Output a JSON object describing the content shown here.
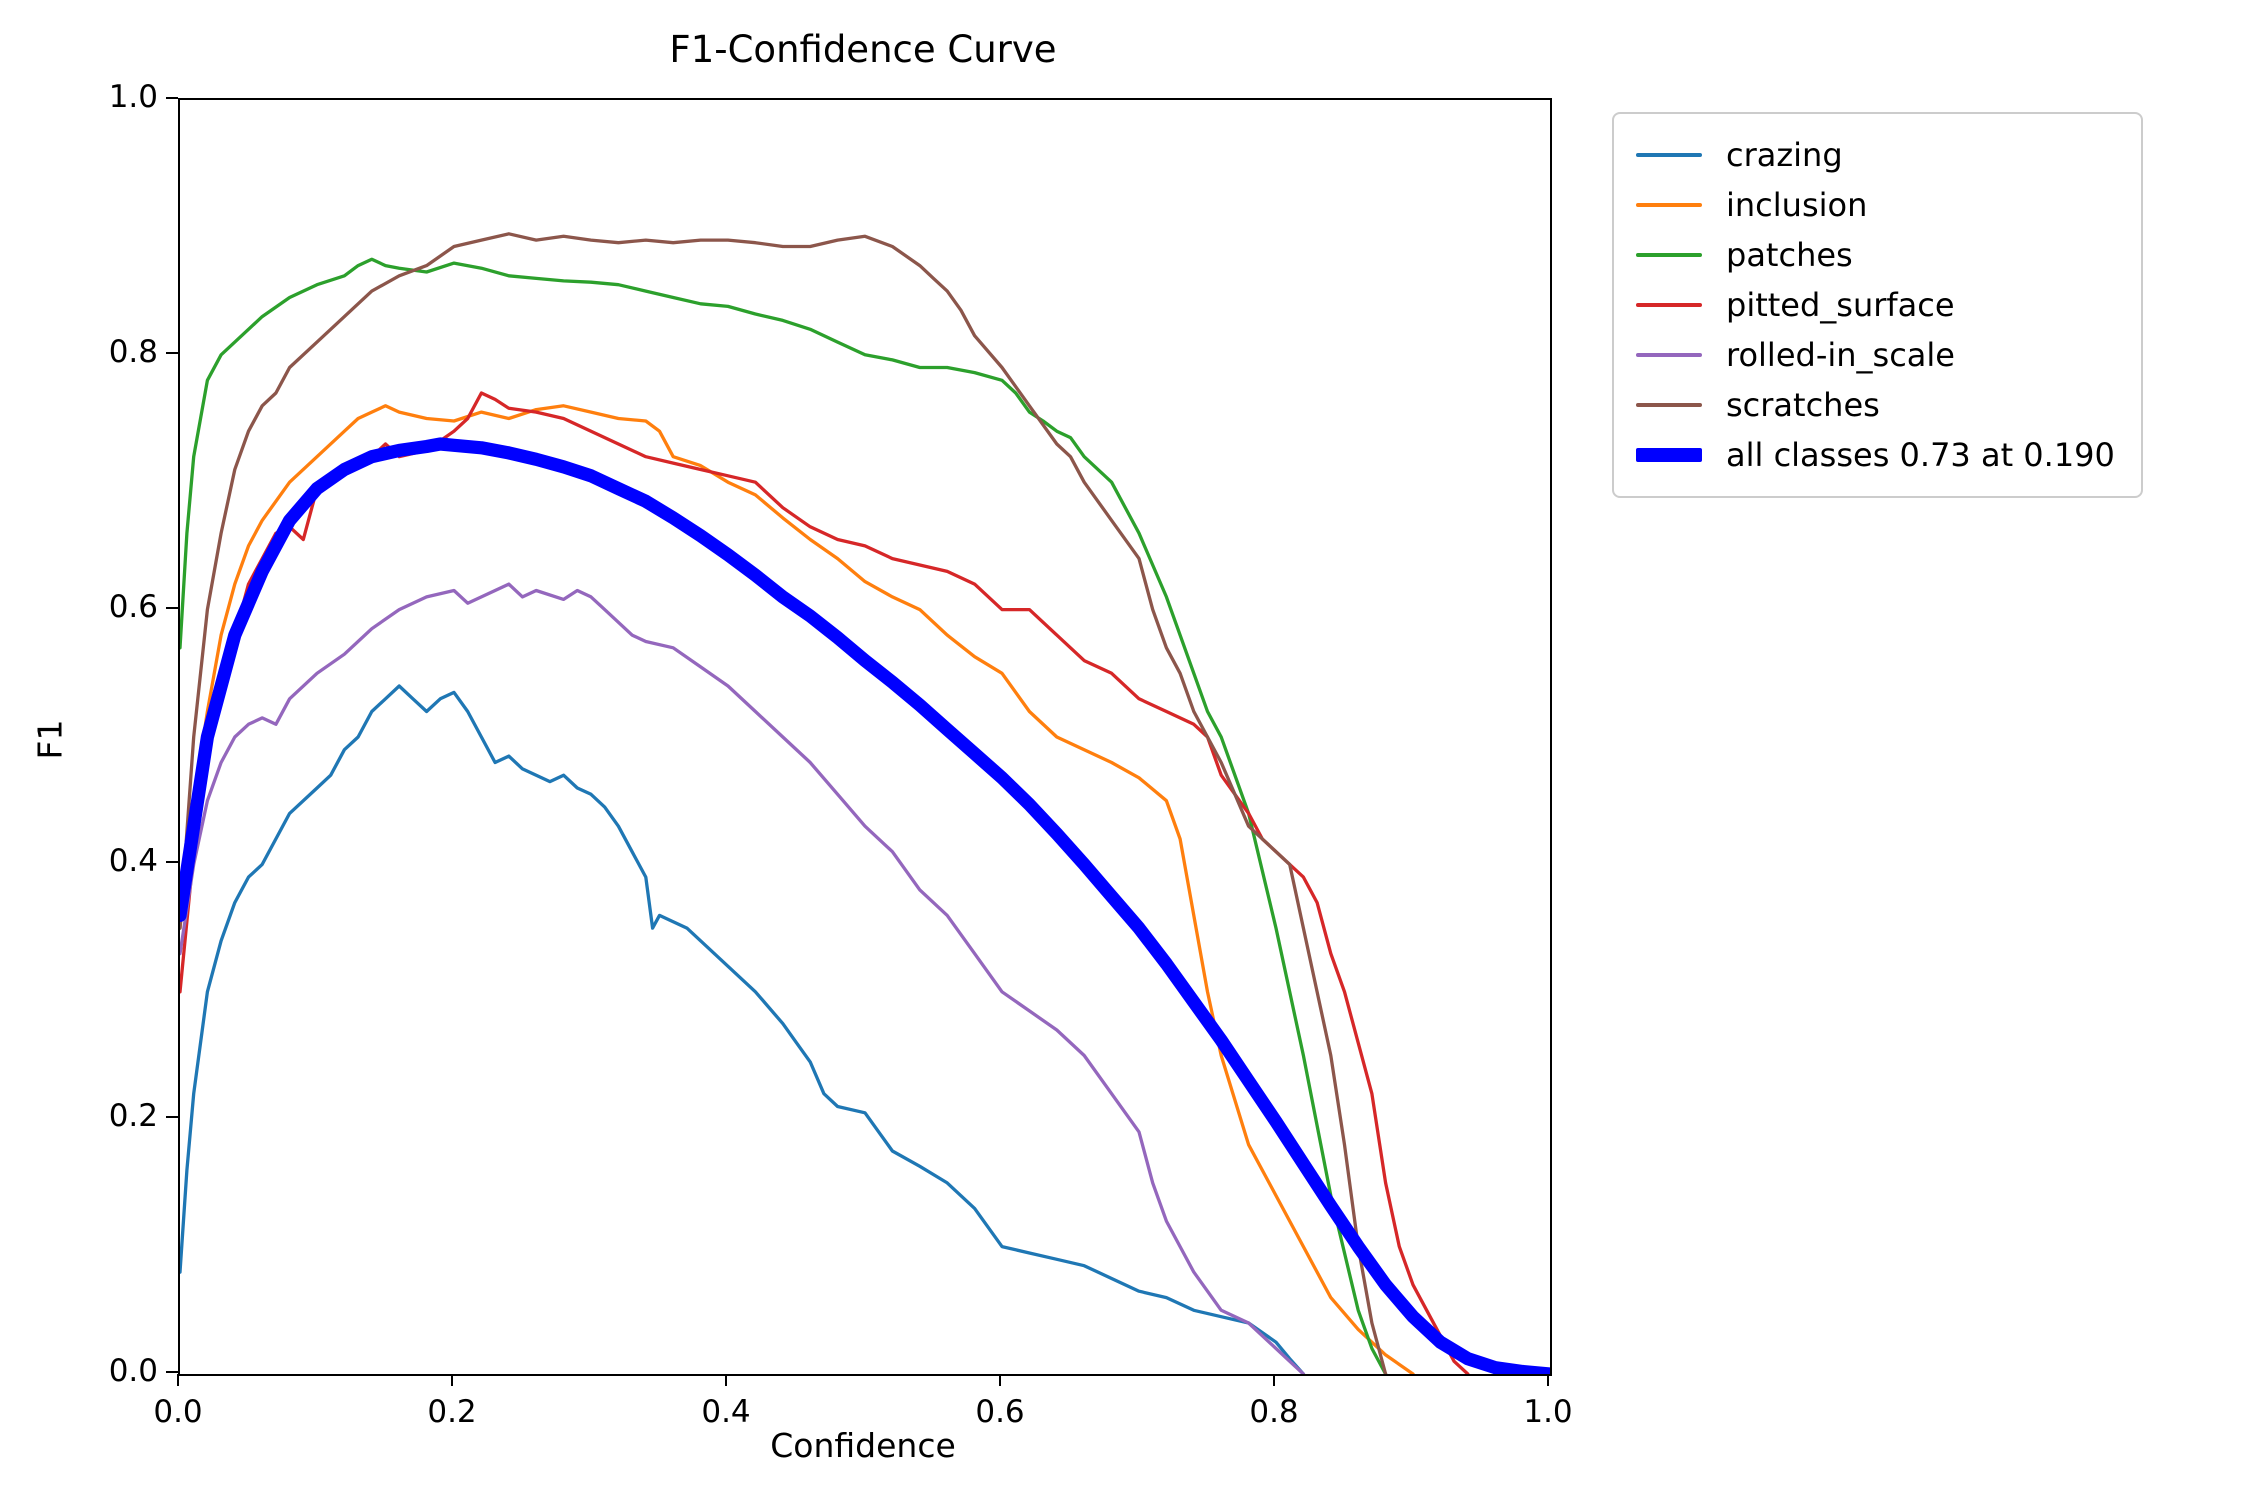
{
  "chart_data": {
    "type": "line",
    "title": "F1-Confidence Curve",
    "xlabel": "Confidence",
    "ylabel": "F1",
    "xlim": [
      0.0,
      1.0
    ],
    "ylim": [
      0.0,
      1.0
    ],
    "x_ticks": [
      0.0,
      0.2,
      0.4,
      0.6,
      0.8,
      1.0
    ],
    "x_tick_labels": [
      "0.0",
      "0.2",
      "0.4",
      "0.6",
      "0.8",
      "1.0"
    ],
    "y_ticks": [
      0.0,
      0.2,
      0.4,
      0.6,
      0.8,
      1.0
    ],
    "y_tick_labels": [
      "0.0",
      "0.2",
      "0.4",
      "0.6",
      "0.8",
      "1.0"
    ],
    "grid": false,
    "legend_position": "outside upper right",
    "series": [
      {
        "name": "crazing",
        "label": "crazing",
        "color": "#1f77b4",
        "lw": 1.5,
        "x": [
          0,
          0.005,
          0.01,
          0.02,
          0.03,
          0.04,
          0.05,
          0.06,
          0.08,
          0.1,
          0.11,
          0.12,
          0.13,
          0.14,
          0.15,
          0.16,
          0.17,
          0.18,
          0.19,
          0.2,
          0.21,
          0.22,
          0.23,
          0.24,
          0.25,
          0.26,
          0.27,
          0.28,
          0.29,
          0.3,
          0.31,
          0.32,
          0.33,
          0.34,
          0.345,
          0.35,
          0.36,
          0.37,
          0.38,
          0.4,
          0.42,
          0.44,
          0.45,
          0.46,
          0.47,
          0.48,
          0.5,
          0.51,
          0.52,
          0.54,
          0.56,
          0.58,
          0.6,
          0.62,
          0.64,
          0.66,
          0.68,
          0.7,
          0.72,
          0.74,
          0.76,
          0.78,
          0.8,
          0.81,
          0.82
        ],
        "y": [
          0.08,
          0.16,
          0.22,
          0.3,
          0.34,
          0.37,
          0.39,
          0.4,
          0.44,
          0.46,
          0.47,
          0.49,
          0.5,
          0.52,
          0.53,
          0.54,
          0.53,
          0.52,
          0.53,
          0.535,
          0.52,
          0.5,
          0.48,
          0.485,
          0.475,
          0.47,
          0.465,
          0.47,
          0.46,
          0.455,
          0.445,
          0.43,
          0.41,
          0.39,
          0.35,
          0.36,
          0.355,
          0.35,
          0.34,
          0.32,
          0.3,
          0.275,
          0.26,
          0.245,
          0.22,
          0.21,
          0.205,
          0.19,
          0.175,
          0.163,
          0.15,
          0.13,
          0.1,
          0.095,
          0.09,
          0.085,
          0.075,
          0.065,
          0.06,
          0.05,
          0.045,
          0.04,
          0.025,
          0.012,
          0.0
        ]
      },
      {
        "name": "inclusion",
        "label": "inclusion",
        "color": "#ff7f0e",
        "lw": 1.5,
        "x": [
          0,
          0.01,
          0.02,
          0.03,
          0.04,
          0.05,
          0.06,
          0.08,
          0.1,
          0.12,
          0.13,
          0.14,
          0.15,
          0.16,
          0.18,
          0.2,
          0.22,
          0.24,
          0.26,
          0.28,
          0.3,
          0.32,
          0.34,
          0.35,
          0.36,
          0.38,
          0.4,
          0.42,
          0.44,
          0.46,
          0.48,
          0.5,
          0.52,
          0.54,
          0.56,
          0.58,
          0.6,
          0.62,
          0.64,
          0.66,
          0.68,
          0.7,
          0.72,
          0.73,
          0.74,
          0.75,
          0.76,
          0.78,
          0.8,
          0.82,
          0.84,
          0.86,
          0.88,
          0.9
        ],
        "y": [
          0.35,
          0.45,
          0.52,
          0.58,
          0.62,
          0.65,
          0.67,
          0.7,
          0.72,
          0.74,
          0.75,
          0.755,
          0.76,
          0.755,
          0.75,
          0.748,
          0.755,
          0.75,
          0.757,
          0.76,
          0.755,
          0.75,
          0.748,
          0.74,
          0.72,
          0.713,
          0.7,
          0.69,
          0.672,
          0.655,
          0.64,
          0.622,
          0.61,
          0.6,
          0.58,
          0.563,
          0.55,
          0.52,
          0.5,
          0.49,
          0.48,
          0.468,
          0.45,
          0.42,
          0.36,
          0.3,
          0.25,
          0.18,
          0.14,
          0.1,
          0.06,
          0.035,
          0.015,
          0.0
        ]
      },
      {
        "name": "patches",
        "label": "patches",
        "color": "#2ca02c",
        "lw": 1.5,
        "x": [
          0,
          0.005,
          0.01,
          0.02,
          0.03,
          0.04,
          0.05,
          0.06,
          0.08,
          0.1,
          0.12,
          0.13,
          0.14,
          0.15,
          0.16,
          0.18,
          0.2,
          0.22,
          0.24,
          0.26,
          0.28,
          0.3,
          0.32,
          0.34,
          0.36,
          0.38,
          0.4,
          0.42,
          0.44,
          0.46,
          0.48,
          0.5,
          0.52,
          0.54,
          0.56,
          0.58,
          0.6,
          0.61,
          0.62,
          0.63,
          0.64,
          0.65,
          0.66,
          0.68,
          0.7,
          0.72,
          0.74,
          0.75,
          0.76,
          0.78,
          0.8,
          0.82,
          0.84,
          0.86,
          0.87,
          0.88
        ],
        "y": [
          0.57,
          0.66,
          0.72,
          0.78,
          0.8,
          0.81,
          0.82,
          0.83,
          0.845,
          0.855,
          0.862,
          0.87,
          0.875,
          0.87,
          0.868,
          0.865,
          0.872,
          0.868,
          0.862,
          0.86,
          0.858,
          0.857,
          0.855,
          0.85,
          0.845,
          0.84,
          0.838,
          0.832,
          0.827,
          0.82,
          0.81,
          0.8,
          0.796,
          0.79,
          0.79,
          0.786,
          0.78,
          0.77,
          0.755,
          0.748,
          0.74,
          0.735,
          0.72,
          0.7,
          0.66,
          0.61,
          0.55,
          0.52,
          0.5,
          0.44,
          0.35,
          0.25,
          0.14,
          0.05,
          0.02,
          0.0
        ]
      },
      {
        "name": "pitted_surface",
        "label": "pitted_surface",
        "color": "#d62728",
        "lw": 1.5,
        "x": [
          0,
          0.01,
          0.02,
          0.03,
          0.04,
          0.05,
          0.06,
          0.07,
          0.08,
          0.09,
          0.1,
          0.12,
          0.14,
          0.15,
          0.16,
          0.18,
          0.2,
          0.21,
          0.22,
          0.23,
          0.24,
          0.26,
          0.28,
          0.3,
          0.32,
          0.34,
          0.36,
          0.38,
          0.4,
          0.42,
          0.44,
          0.46,
          0.48,
          0.5,
          0.52,
          0.54,
          0.56,
          0.58,
          0.6,
          0.62,
          0.64,
          0.66,
          0.68,
          0.7,
          0.72,
          0.74,
          0.75,
          0.76,
          0.78,
          0.79,
          0.8,
          0.81,
          0.82,
          0.83,
          0.84,
          0.85,
          0.86,
          0.87,
          0.88,
          0.89,
          0.9,
          0.91,
          0.92,
          0.93,
          0.94
        ],
        "y": [
          0.3,
          0.41,
          0.48,
          0.54,
          0.58,
          0.62,
          0.64,
          0.66,
          0.665,
          0.655,
          0.695,
          0.71,
          0.72,
          0.73,
          0.72,
          0.725,
          0.74,
          0.75,
          0.77,
          0.765,
          0.758,
          0.755,
          0.75,
          0.74,
          0.73,
          0.72,
          0.715,
          0.71,
          0.705,
          0.7,
          0.68,
          0.665,
          0.655,
          0.65,
          0.64,
          0.635,
          0.63,
          0.62,
          0.6,
          0.6,
          0.58,
          0.56,
          0.55,
          0.53,
          0.52,
          0.51,
          0.5,
          0.47,
          0.44,
          0.42,
          0.41,
          0.4,
          0.39,
          0.37,
          0.33,
          0.3,
          0.26,
          0.22,
          0.15,
          0.1,
          0.07,
          0.05,
          0.03,
          0.01,
          0.0
        ]
      },
      {
        "name": "rolled-in_scale",
        "label": "rolled-in_scale",
        "color": "#9467bd",
        "lw": 1.5,
        "x": [
          0,
          0.01,
          0.02,
          0.03,
          0.04,
          0.05,
          0.06,
          0.07,
          0.08,
          0.1,
          0.12,
          0.14,
          0.16,
          0.18,
          0.2,
          0.21,
          0.22,
          0.24,
          0.25,
          0.26,
          0.28,
          0.29,
          0.3,
          0.31,
          0.32,
          0.33,
          0.34,
          0.36,
          0.38,
          0.4,
          0.42,
          0.44,
          0.46,
          0.48,
          0.5,
          0.52,
          0.54,
          0.56,
          0.58,
          0.6,
          0.62,
          0.64,
          0.66,
          0.68,
          0.7,
          0.71,
          0.72,
          0.73,
          0.74,
          0.75,
          0.76,
          0.78,
          0.8,
          0.81,
          0.82
        ],
        "y": [
          0.33,
          0.4,
          0.45,
          0.48,
          0.5,
          0.51,
          0.515,
          0.51,
          0.53,
          0.55,
          0.565,
          0.585,
          0.6,
          0.61,
          0.615,
          0.605,
          0.61,
          0.62,
          0.61,
          0.615,
          0.608,
          0.615,
          0.61,
          0.6,
          0.59,
          0.58,
          0.575,
          0.57,
          0.555,
          0.54,
          0.52,
          0.5,
          0.48,
          0.455,
          0.43,
          0.41,
          0.38,
          0.36,
          0.33,
          0.3,
          0.285,
          0.27,
          0.25,
          0.22,
          0.19,
          0.15,
          0.12,
          0.1,
          0.08,
          0.065,
          0.05,
          0.04,
          0.02,
          0.01,
          0.0
        ]
      },
      {
        "name": "scratches",
        "label": "scratches",
        "color": "#8c564b",
        "lw": 1.5,
        "x": [
          0,
          0.01,
          0.02,
          0.03,
          0.04,
          0.05,
          0.06,
          0.07,
          0.08,
          0.1,
          0.12,
          0.14,
          0.16,
          0.18,
          0.2,
          0.22,
          0.24,
          0.26,
          0.28,
          0.3,
          0.32,
          0.34,
          0.36,
          0.38,
          0.4,
          0.42,
          0.44,
          0.46,
          0.48,
          0.5,
          0.52,
          0.54,
          0.55,
          0.56,
          0.57,
          0.58,
          0.6,
          0.62,
          0.64,
          0.65,
          0.66,
          0.68,
          0.7,
          0.71,
          0.72,
          0.73,
          0.74,
          0.75,
          0.76,
          0.77,
          0.78,
          0.79,
          0.8,
          0.81,
          0.82,
          0.83,
          0.84,
          0.85,
          0.86,
          0.87,
          0.88
        ],
        "y": [
          0.35,
          0.5,
          0.6,
          0.66,
          0.71,
          0.74,
          0.76,
          0.77,
          0.79,
          0.81,
          0.83,
          0.85,
          0.862,
          0.87,
          0.885,
          0.89,
          0.895,
          0.89,
          0.893,
          0.89,
          0.888,
          0.89,
          0.888,
          0.89,
          0.89,
          0.888,
          0.885,
          0.885,
          0.89,
          0.893,
          0.885,
          0.87,
          0.86,
          0.85,
          0.835,
          0.815,
          0.79,
          0.76,
          0.73,
          0.72,
          0.7,
          0.67,
          0.64,
          0.6,
          0.57,
          0.55,
          0.52,
          0.5,
          0.48,
          0.455,
          0.43,
          0.42,
          0.41,
          0.4,
          0.35,
          0.3,
          0.25,
          0.18,
          0.1,
          0.04,
          0.0
        ]
      },
      {
        "name": "all_classes",
        "label": "all classes 0.73 at 0.190",
        "color": "#0000ff",
        "lw": 6,
        "x": [
          0,
          0.02,
          0.04,
          0.06,
          0.08,
          0.1,
          0.12,
          0.14,
          0.16,
          0.18,
          0.19,
          0.2,
          0.22,
          0.24,
          0.26,
          0.28,
          0.3,
          0.32,
          0.34,
          0.36,
          0.38,
          0.4,
          0.42,
          0.44,
          0.46,
          0.48,
          0.5,
          0.52,
          0.54,
          0.56,
          0.58,
          0.6,
          0.62,
          0.64,
          0.66,
          0.68,
          0.7,
          0.72,
          0.74,
          0.76,
          0.78,
          0.8,
          0.82,
          0.84,
          0.86,
          0.88,
          0.9,
          0.92,
          0.94,
          0.96,
          0.98,
          1.0
        ],
        "y": [
          0.36,
          0.5,
          0.58,
          0.63,
          0.67,
          0.695,
          0.71,
          0.72,
          0.725,
          0.728,
          0.73,
          0.729,
          0.727,
          0.723,
          0.718,
          0.712,
          0.705,
          0.695,
          0.685,
          0.672,
          0.658,
          0.643,
          0.627,
          0.61,
          0.595,
          0.578,
          0.56,
          0.543,
          0.525,
          0.506,
          0.487,
          0.468,
          0.447,
          0.424,
          0.4,
          0.375,
          0.35,
          0.322,
          0.292,
          0.262,
          0.23,
          0.198,
          0.165,
          0.132,
          0.1,
          0.07,
          0.045,
          0.025,
          0.012,
          0.005,
          0.002,
          0.0
        ]
      }
    ],
    "best_f1": "0.73",
    "best_confidence": "0.190"
  }
}
